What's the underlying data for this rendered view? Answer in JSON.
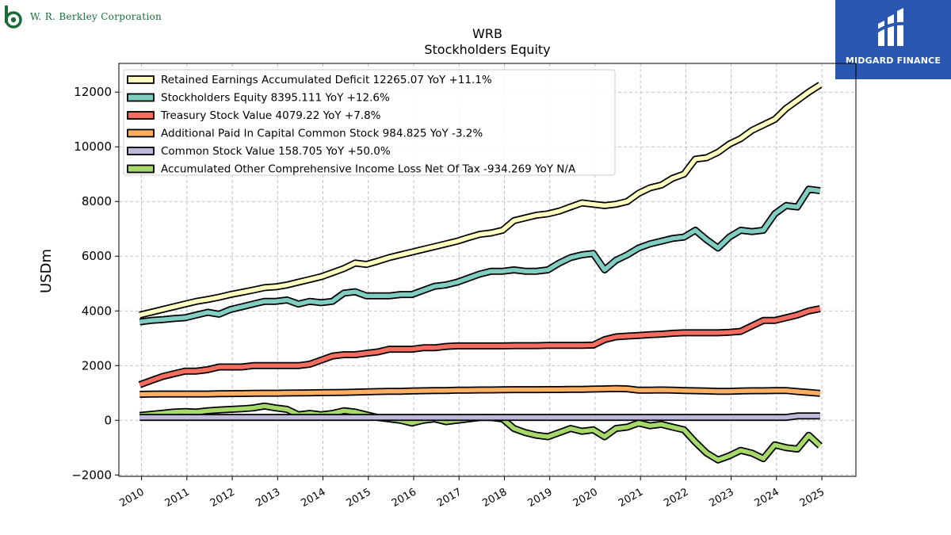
{
  "header": {
    "company_name": "W. R. Berkley Corporation",
    "brand_name": "MIDGARD FINANCE"
  },
  "colors": {
    "company_green": "#1d6b3a",
    "brand_blue": "#2a58b0"
  },
  "chart_data": {
    "type": "line",
    "title": "WRB",
    "subtitle": "Stockholders  Equity",
    "xlabel": "",
    "ylabel": "USDm",
    "xlim": [
      2009.5,
      2025.75
    ],
    "ylim": [
      -2050,
      13050
    ],
    "yticks": [
      -2000,
      0,
      2000,
      4000,
      6000,
      8000,
      10000,
      12000
    ],
    "xticks": [
      2010,
      2011,
      2012,
      2013,
      2014,
      2015,
      2016,
      2017,
      2018,
      2019,
      2020,
      2021,
      2022,
      2023,
      2024,
      2025
    ],
    "grid": true,
    "legend_position": "top-left",
    "x": [
      2009.96,
      2010.21,
      2010.46,
      2010.71,
      2010.96,
      2011.21,
      2011.46,
      2011.71,
      2011.96,
      2012.21,
      2012.46,
      2012.71,
      2012.96,
      2013.21,
      2013.46,
      2013.71,
      2013.96,
      2014.21,
      2014.46,
      2014.71,
      2014.96,
      2015.21,
      2015.46,
      2015.71,
      2015.96,
      2016.21,
      2016.46,
      2016.71,
      2016.96,
      2017.21,
      2017.46,
      2017.71,
      2017.96,
      2018.21,
      2018.46,
      2018.71,
      2018.96,
      2019.21,
      2019.46,
      2019.71,
      2019.96,
      2020.21,
      2020.46,
      2020.71,
      2020.96,
      2021.21,
      2021.46,
      2021.71,
      2021.96,
      2022.21,
      2022.46,
      2022.71,
      2022.96,
      2023.21,
      2023.46,
      2023.71,
      2023.96,
      2024.21,
      2024.46,
      2024.71,
      2024.96
    ],
    "series": [
      {
        "name": "Retained Earnings Accumulated Deficit",
        "legend_label": "Retained Earnings Accumulated Deficit  12265.07 YoY +11.1%",
        "color": "#ffffbf",
        "values": [
          3850,
          3950,
          4050,
          4150,
          4250,
          4350,
          4420,
          4500,
          4600,
          4680,
          4760,
          4850,
          4880,
          4950,
          5050,
          5150,
          5250,
          5400,
          5550,
          5750,
          5700,
          5820,
          5950,
          6050,
          6150,
          6250,
          6350,
          6450,
          6550,
          6680,
          6800,
          6850,
          6950,
          7300,
          7400,
          7500,
          7550,
          7650,
          7800,
          7950,
          7900,
          7850,
          7900,
          8000,
          8300,
          8500,
          8600,
          8850,
          9000,
          9550,
          9600,
          9800,
          10100,
          10300,
          10600,
          10800,
          11000,
          11400,
          11700,
          12000,
          12265
        ]
      },
      {
        "name": "Stockholders Equity",
        "legend_label": "Stockholders Equity  8395.111 YoY +12.6%",
        "color": "#80cdc1",
        "values": [
          3600,
          3650,
          3680,
          3720,
          3750,
          3850,
          3950,
          3880,
          4050,
          4150,
          4250,
          4350,
          4350,
          4400,
          4250,
          4350,
          4300,
          4350,
          4650,
          4700,
          4550,
          4550,
          4550,
          4600,
          4600,
          4750,
          4900,
          4950,
          5050,
          5200,
          5350,
          5450,
          5450,
          5500,
          5450,
          5450,
          5500,
          5750,
          5950,
          6050,
          6100,
          5500,
          5850,
          6050,
          6300,
          6450,
          6550,
          6650,
          6700,
          6950,
          6600,
          6300,
          6700,
          6950,
          6900,
          6950,
          7550,
          7850,
          7800,
          8450,
          8395
        ]
      },
      {
        "name": "Treasury Stock Value",
        "legend_label": "Treasury Stock Value  4079.22 YoY +7.8%",
        "color": "#f46d5f",
        "values": [
          1300,
          1450,
          1600,
          1700,
          1800,
          1800,
          1850,
          1950,
          1950,
          1950,
          2000,
          2000,
          2000,
          2000,
          2000,
          2050,
          2200,
          2350,
          2400,
          2400,
          2450,
          2500,
          2600,
          2600,
          2600,
          2650,
          2650,
          2700,
          2720,
          2720,
          2720,
          2720,
          2720,
          2730,
          2730,
          2730,
          2740,
          2740,
          2740,
          2740,
          2750,
          2950,
          3050,
          3080,
          3100,
          3130,
          3150,
          3180,
          3200,
          3200,
          3200,
          3200,
          3220,
          3250,
          3450,
          3650,
          3650,
          3750,
          3850,
          4000,
          4079
        ]
      },
      {
        "name": "Additional Paid In Capital Common Stock",
        "legend_label": "Additional Paid In Capital Common Stock  984.825 YoY -3.2%",
        "color": "#fdae61",
        "values": [
          950,
          955,
          960,
          960,
          960,
          960,
          960,
          970,
          975,
          980,
          985,
          990,
          990,
          995,
          1000,
          1005,
          1010,
          1015,
          1020,
          1030,
          1040,
          1050,
          1060,
          1060,
          1070,
          1080,
          1085,
          1090,
          1100,
          1100,
          1110,
          1110,
          1115,
          1120,
          1120,
          1120,
          1125,
          1125,
          1130,
          1130,
          1140,
          1150,
          1160,
          1150,
          1100,
          1100,
          1110,
          1100,
          1090,
          1080,
          1070,
          1060,
          1060,
          1070,
          1080,
          1080,
          1090,
          1090,
          1050,
          1020,
          985
        ]
      },
      {
        "name": "Common Stock Value",
        "legend_label": "Common Stock Value  158.705 YoY +50.0%",
        "color": "#bebada",
        "values": [
          106,
          106,
          106,
          106,
          106,
          106,
          106,
          106,
          106,
          106,
          106,
          106,
          106,
          106,
          106,
          106,
          106,
          106,
          106,
          106,
          106,
          106,
          106,
          106,
          106,
          106,
          106,
          106,
          106,
          106,
          106,
          106,
          106,
          106,
          106,
          106,
          106,
          106,
          106,
          106,
          106,
          106,
          106,
          106,
          106,
          106,
          106,
          106,
          106,
          106,
          106,
          106,
          106,
          106,
          106,
          106,
          106,
          106,
          159,
          159,
          159
        ]
      },
      {
        "name": "Accumulated Other Comprehensive Income Loss Net Of Tax",
        "legend_label": "Accumulated Other Comprehensive Income Loss Net Of Tax  -934.269 YoY N/A",
        "color": "#a6d96a",
        "values": [
          180,
          220,
          260,
          300,
          320,
          300,
          350,
          380,
          400,
          420,
          450,
          520,
          450,
          400,
          200,
          250,
          200,
          250,
          350,
          300,
          200,
          100,
          50,
          0,
          -100,
          0,
          50,
          -50,
          0,
          50,
          100,
          100,
          50,
          -300,
          -450,
          -550,
          -600,
          -450,
          -300,
          -400,
          -350,
          -600,
          -300,
          -250,
          -100,
          -200,
          -150,
          -250,
          -350,
          -800,
          -1200,
          -1450,
          -1300,
          -1100,
          -1200,
          -1400,
          -900,
          -1000,
          -1050,
          -550,
          -934
        ]
      }
    ]
  }
}
